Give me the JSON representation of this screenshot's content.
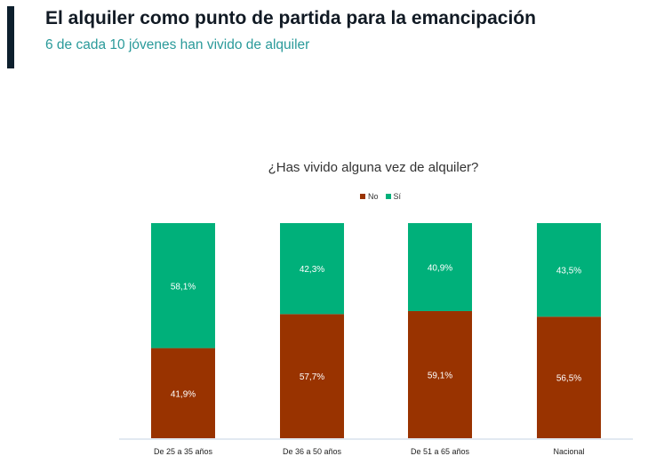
{
  "header": {
    "title": "El alquiler como punto de partida para la emancipación",
    "subtitle": "6 de cada 10 jóvenes han vivido de alquiler"
  },
  "chart_data": {
    "type": "bar",
    "stacked": true,
    "title": "¿Has vivido alguna vez de alquiler?",
    "categories": [
      "De 25 a 35 años",
      "De 36 a 50 años",
      "De 51 a 65 años",
      "Nacional"
    ],
    "series": [
      {
        "name": "No",
        "color": "#993300",
        "values": [
          41.9,
          57.7,
          59.1,
          56.5
        ],
        "labels": [
          "41,9%",
          "57,7%",
          "59,1%",
          "56,5%"
        ]
      },
      {
        "name": "Sí",
        "color": "#00B07A",
        "values": [
          58.1,
          42.3,
          40.9,
          43.5
        ],
        "labels": [
          "58,1%",
          "42,3%",
          "40,9%",
          "43,5%"
        ]
      }
    ],
    "ylim": [
      0,
      100
    ],
    "legend": "top",
    "grid": false
  }
}
